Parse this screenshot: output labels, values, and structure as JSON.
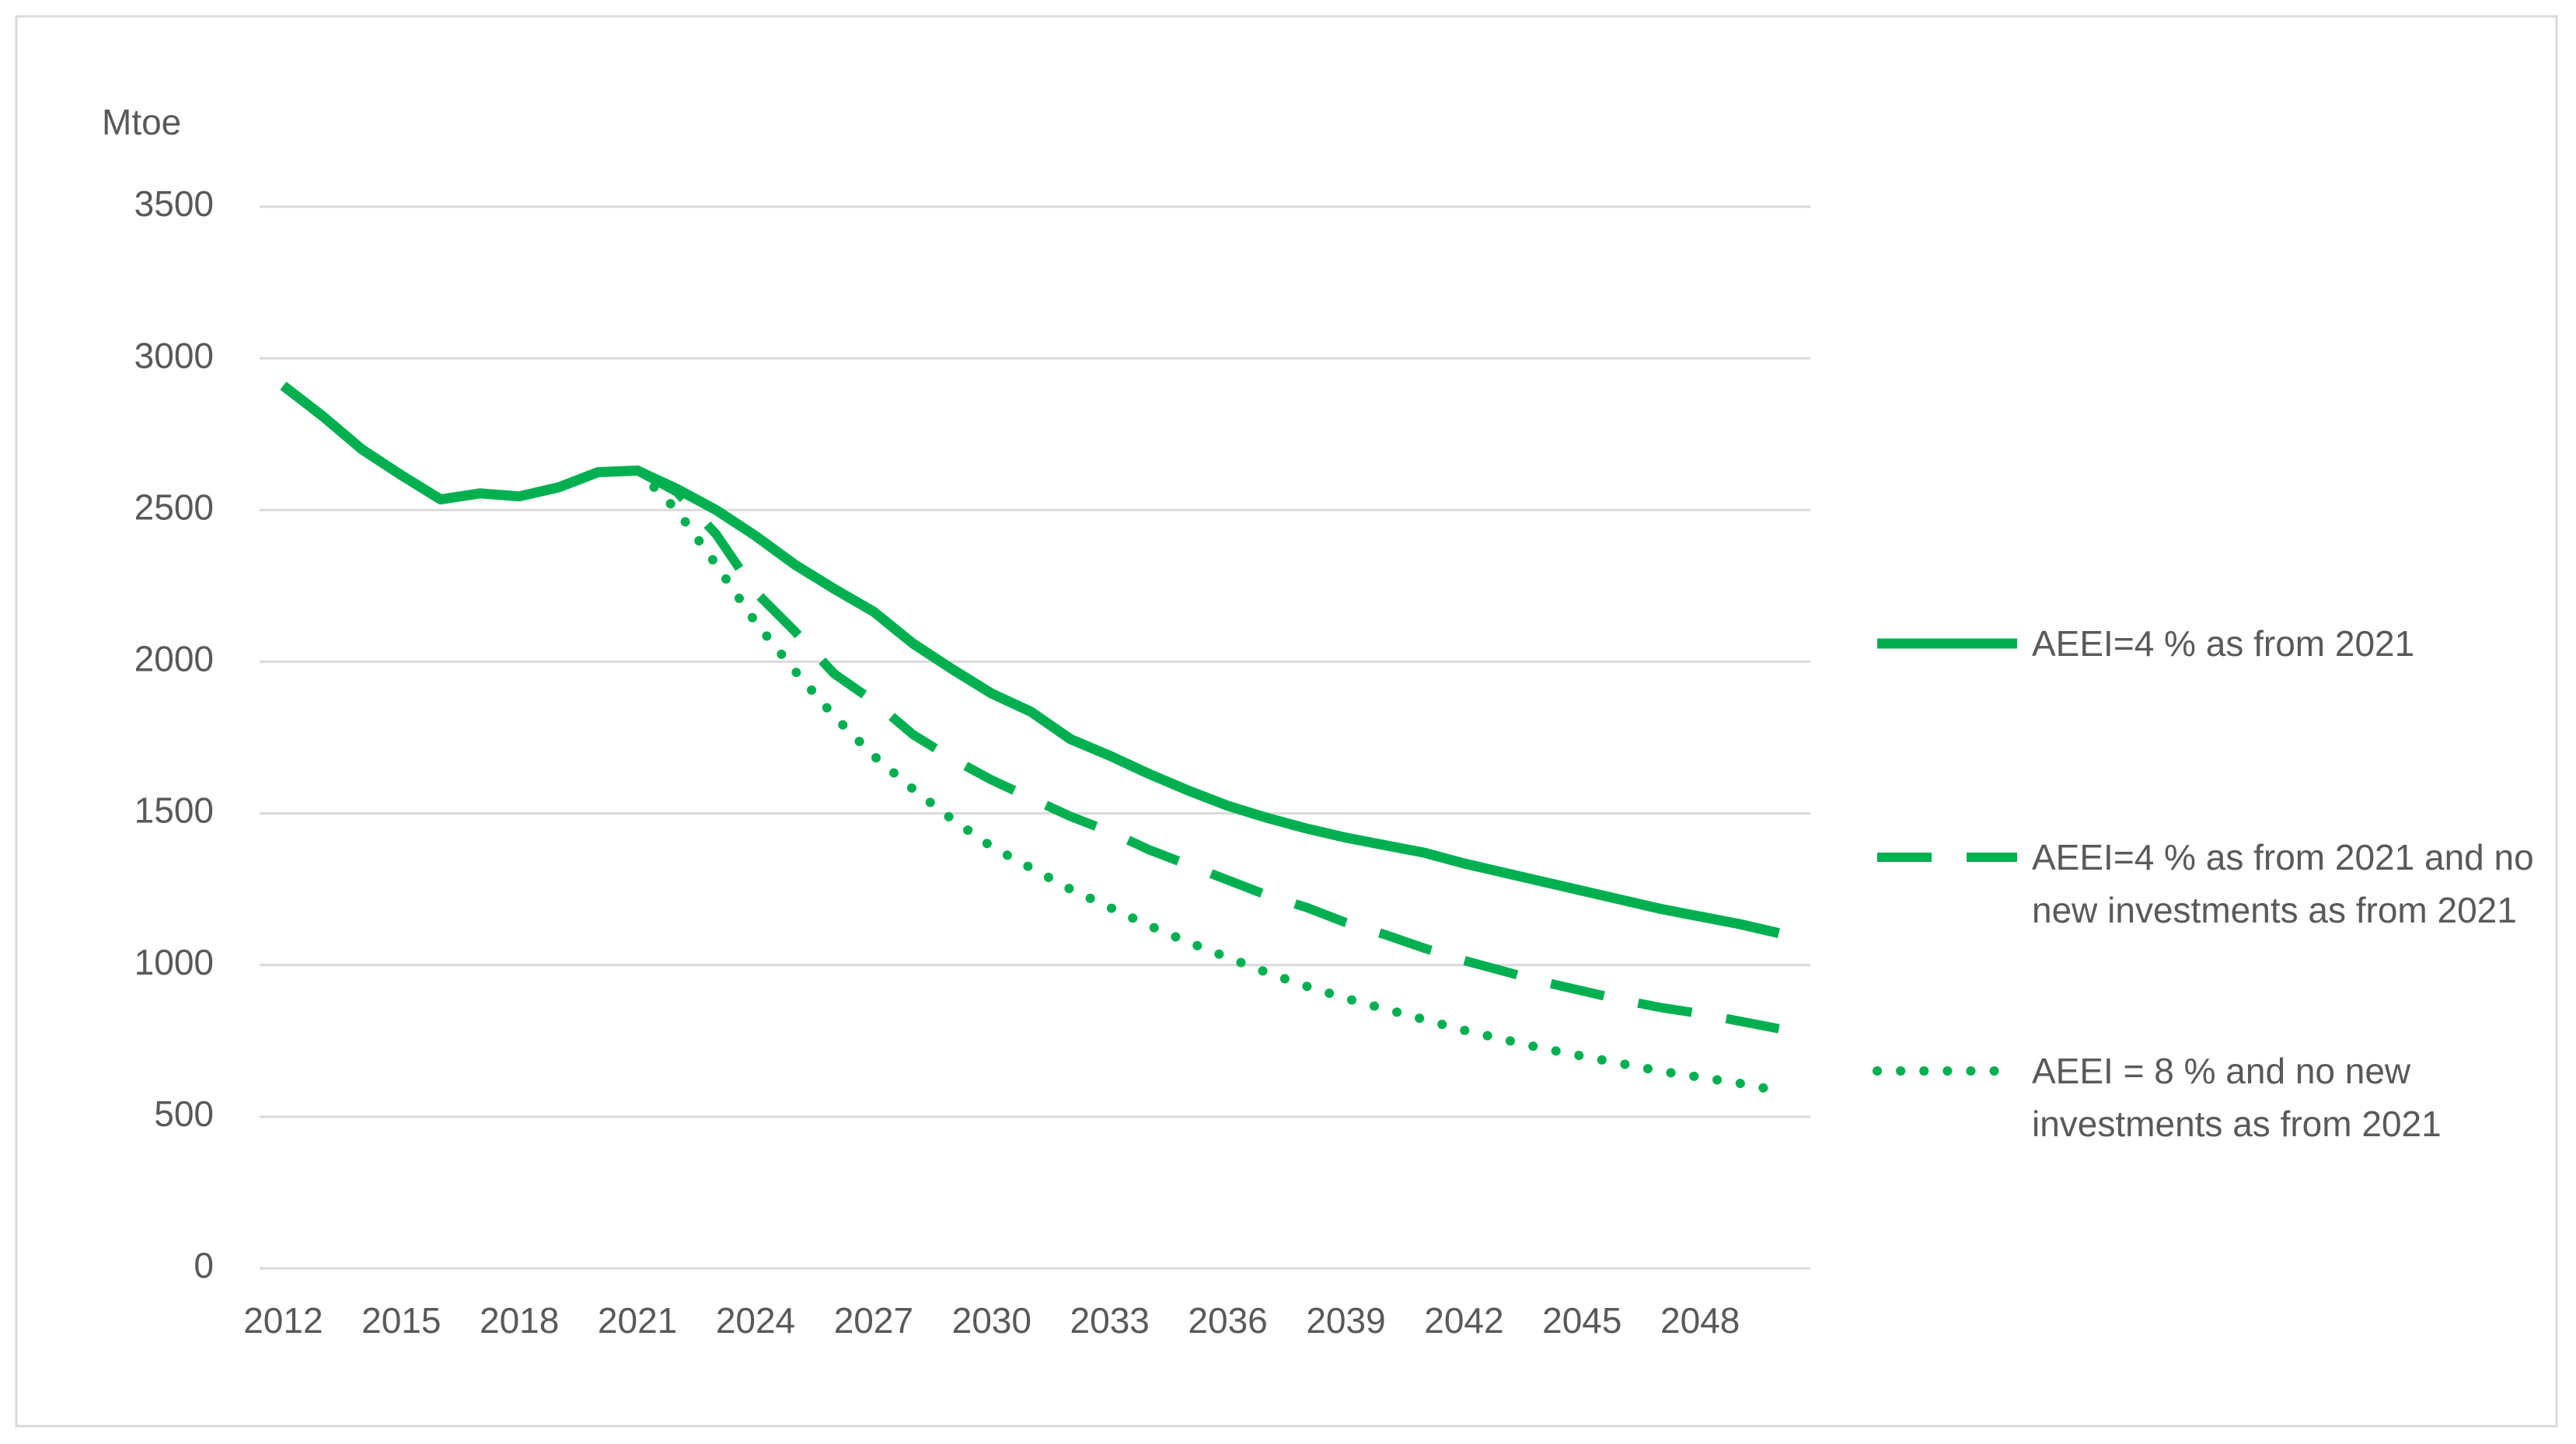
{
  "chart_data": {
    "type": "line",
    "ylabel": "Mtoe",
    "x": [
      2012,
      2013,
      2014,
      2015,
      2016,
      2017,
      2018,
      2019,
      2020,
      2021,
      2022,
      2023,
      2024,
      2025,
      2026,
      2027,
      2028,
      2029,
      2030,
      2031,
      2032,
      2033,
      2034,
      2035,
      2036,
      2037,
      2038,
      2039,
      2040,
      2041,
      2042,
      2043,
      2044,
      2045,
      2046,
      2047,
      2048,
      2049,
      2050
    ],
    "xlim": [
      2011.4,
      2050.8
    ],
    "xticks": [
      2012,
      2015,
      2018,
      2021,
      2024,
      2027,
      2030,
      2033,
      2036,
      2039,
      2042,
      2045,
      2048
    ],
    "ylim": [
      0,
      3500
    ],
    "yticks": [
      0,
      500,
      1000,
      1500,
      2000,
      2500,
      3000,
      3500
    ],
    "grid": true,
    "legend": "right",
    "series": [
      {
        "name": "AEEI=4 % as from 2021",
        "color": "#00b050",
        "dash": "solid",
        "values": [
          2910,
          2810,
          2700,
          2615,
          2535,
          2555,
          2545,
          2575,
          2625,
          2630,
          2570,
          2500,
          2415,
          2320,
          2240,
          2165,
          2060,
          1975,
          1895,
          1835,
          1745,
          1690,
          1630,
          1575,
          1525,
          1485,
          1450,
          1420,
          1395,
          1370,
          1335,
          1305,
          1275,
          1245,
          1215,
          1185,
          1160,
          1135,
          1105
        ]
      },
      {
        "name": "AEEI=4 % as from 2021 and no new investments as from 2021",
        "color": "#00b050",
        "dash": "dashed",
        "values": [
          null,
          null,
          null,
          null,
          null,
          null,
          null,
          null,
          null,
          2630,
          2560,
          2420,
          2230,
          2100,
          1960,
          1870,
          1760,
          1680,
          1610,
          1550,
          1490,
          1440,
          1380,
          1330,
          1280,
          1230,
          1190,
          1140,
          1100,
          1055,
          1015,
          980,
          945,
          915,
          885,
          860,
          840,
          815,
          790
        ]
      },
      {
        "name": "AEEI = 8 % and no new investments as from 2021",
        "color": "#00b050",
        "dash": "dotted",
        "values": [
          null,
          null,
          null,
          null,
          null,
          null,
          null,
          null,
          null,
          2630,
          2500,
          2320,
          2130,
          1970,
          1820,
          1690,
          1580,
          1480,
          1390,
          1320,
          1250,
          1190,
          1130,
          1075,
          1025,
          975,
          930,
          890,
          855,
          820,
          785,
          755,
          725,
          700,
          675,
          650,
          630,
          610,
          585
        ]
      }
    ]
  }
}
